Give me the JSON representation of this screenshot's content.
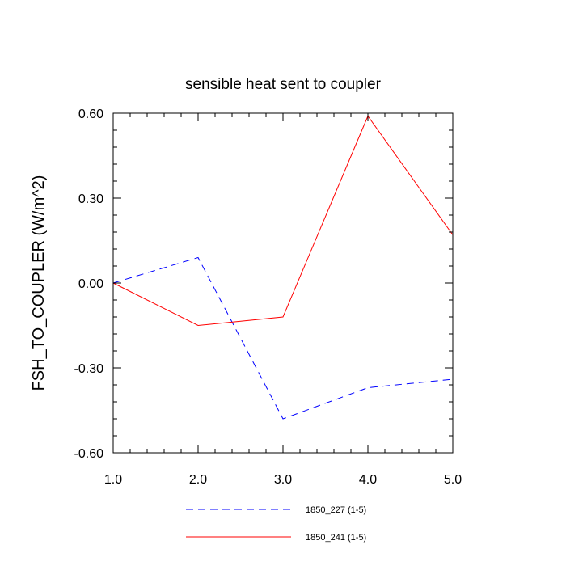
{
  "chart_data": {
    "type": "line",
    "title": "sensible heat sent to coupler",
    "xlabel": "",
    "ylabel": "FSH_TO_COUPLER  (W/m^2)",
    "xlim": [
      1.0,
      5.0
    ],
    "ylim": [
      -0.6,
      0.6
    ],
    "x_ticks": [
      1.0,
      2.0,
      3.0,
      4.0,
      5.0
    ],
    "x_tick_labels": [
      "1.0",
      "2.0",
      "3.0",
      "4.0",
      "5.0"
    ],
    "y_ticks": [
      -0.6,
      -0.3,
      0.0,
      0.3,
      0.6
    ],
    "y_tick_labels": [
      "-0.60",
      "-0.30",
      "0.00",
      "0.30",
      "0.60"
    ],
    "grid": false,
    "legend_position": "bottom",
    "series": [
      {
        "name": "1850_227 (1-5)",
        "color": "#0000ff",
        "line_style": "dashed",
        "x": [
          1.0,
          2.0,
          3.0,
          4.0,
          5.0
        ],
        "y": [
          0.0,
          0.09,
          -0.48,
          -0.37,
          -0.34
        ]
      },
      {
        "name": "1850_241 (1-5)",
        "color": "#ff0000",
        "line_style": "solid",
        "x": [
          1.0,
          2.0,
          3.0,
          4.0,
          5.0
        ],
        "y": [
          0.0,
          -0.15,
          -0.12,
          0.59,
          0.17
        ]
      }
    ]
  }
}
